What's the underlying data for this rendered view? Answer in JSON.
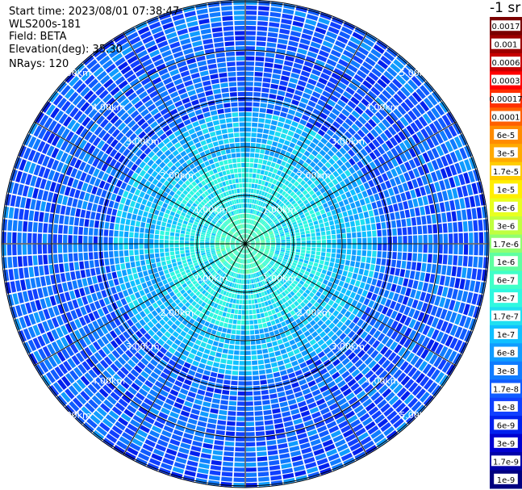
{
  "header": {
    "start_time": "Start time: 2023/08/01 07:38:47",
    "instrument": "WLS200s-181",
    "field": "Field: BETA",
    "elevation": "Elevation(deg): 35.30",
    "nrays": "NRays: 120"
  },
  "chart_data": {
    "type": "heatmap",
    "projection": "polar-ppi",
    "field": "BETA",
    "elevation_deg": 35.3,
    "n_rays": 120,
    "max_range_km": 5.0,
    "range_ring_labels": [
      "1.00km",
      "2.00km",
      "3.00km",
      "4.00km",
      "5.00km"
    ],
    "radial_spokes_deg": [
      0,
      30,
      60,
      90,
      120,
      150,
      180,
      210,
      240,
      270,
      300,
      330
    ],
    "colorbar": {
      "unit": "-1 sr",
      "scale": "log",
      "labels": [
        "0.0017",
        "0.001",
        "0.0006",
        "0.0003",
        "0.00017",
        "0.0001",
        "6e-5",
        "3e-5",
        "1.7e-5",
        "1e-5",
        "6e-6",
        "3e-6",
        "1.7e-6",
        "1e-6",
        "6e-7",
        "3e-7",
        "1.7e-7",
        "1e-7",
        "6e-8",
        "3e-8",
        "1.7e-8",
        "1e-8",
        "6e-9",
        "3e-9",
        "1.7e-9",
        "1e-9"
      ],
      "colors": [
        "#7a0000",
        "#9c0000",
        "#c80000",
        "#ff0000",
        "#ff3000",
        "#ff6000",
        "#ff8c00",
        "#ffaa00",
        "#ffcc00",
        "#ffee00",
        "#e8ff20",
        "#c0ff40",
        "#90ff70",
        "#60ffa0",
        "#40ffc8",
        "#30f8e0",
        "#20e0f0",
        "#10c0ff",
        "#109cff",
        "#107cff",
        "#105cff",
        "#1040ff",
        "#0020ee",
        "#0000d0",
        "#0000a8",
        "#000080"
      ],
      "label_text_colors": [
        "#000",
        "#000",
        "#000",
        "#000",
        "#000",
        "#000",
        "#000",
        "#000",
        "#000",
        "#000",
        "#000",
        "#000",
        "#000",
        "#000",
        "#000",
        "#000",
        "#000",
        "#000",
        "#000",
        "#000",
        "#000",
        "#fff",
        "#000",
        "#000",
        "#000",
        "#fff"
      ]
    }
  }
}
